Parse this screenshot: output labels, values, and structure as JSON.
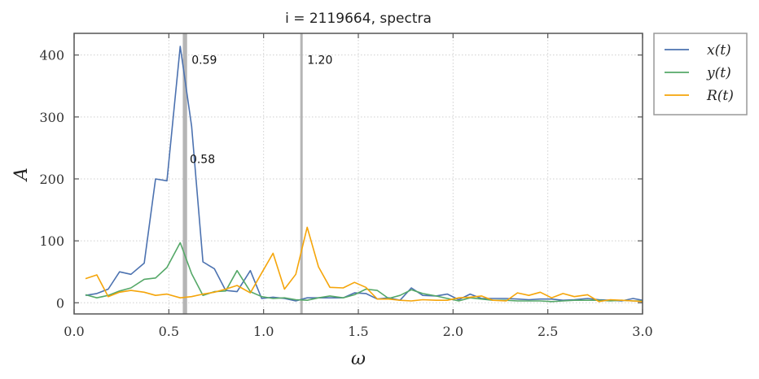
{
  "chart_data": {
    "type": "line",
    "title": "i = 2119664, spectra",
    "xlabel": "ω",
    "ylabel": "A",
    "xlim": [
      0.0,
      3.0
    ],
    "ylim": [
      -18,
      435
    ],
    "xticks": [
      "0.0",
      "0.5",
      "1.0",
      "1.5",
      "2.0",
      "2.5",
      "3.0"
    ],
    "yticks": [
      "0",
      "100",
      "200",
      "300",
      "400"
    ],
    "grid": true,
    "legend_position": "outside-top-right",
    "vlines": [
      {
        "x": 0.58,
        "label": "0.58",
        "label_y": 232
      },
      {
        "x": 0.59,
        "label": "0.59",
        "label_y": 392
      },
      {
        "x": 1.2,
        "label": "1.20",
        "label_y": 392
      }
    ],
    "x": [
      0.06,
      0.12,
      0.18,
      0.24,
      0.3,
      0.37,
      0.43,
      0.49,
      0.56,
      0.62,
      0.68,
      0.74,
      0.8,
      0.86,
      0.93,
      0.99,
      1.05,
      1.11,
      1.17,
      1.23,
      1.29,
      1.35,
      1.42,
      1.48,
      1.54,
      1.6,
      1.66,
      1.72,
      1.78,
      1.84,
      1.91,
      1.97,
      2.03,
      2.09,
      2.15,
      2.21,
      2.28,
      2.34,
      2.4,
      2.46,
      2.52,
      2.58,
      2.64,
      2.71,
      2.77,
      2.83,
      2.89,
      2.95,
      3.01
    ],
    "series": [
      {
        "name": "x(t)",
        "color": "#4c72b0",
        "values": [
          12,
          15,
          22,
          50,
          46,
          64,
          200,
          197,
          414,
          285,
          66,
          55,
          20,
          18,
          52,
          7,
          9,
          7,
          3,
          8,
          8,
          8,
          8,
          16,
          15,
          6,
          8,
          4,
          24,
          12,
          11,
          14,
          5,
          14,
          7,
          7,
          7,
          6,
          5,
          6,
          6,
          4,
          5,
          7,
          5,
          4,
          3,
          7,
          4
        ]
      },
      {
        "name": "y(t)",
        "color": "#55a868",
        "values": [
          13,
          8,
          12,
          19,
          24,
          38,
          40,
          57,
          97,
          47,
          12,
          18,
          19,
          52,
          18,
          10,
          7,
          8,
          5,
          4,
          8,
          11,
          8,
          13,
          22,
          20,
          7,
          12,
          21,
          15,
          11,
          7,
          3,
          8,
          6,
          4,
          4,
          3,
          3,
          3,
          2,
          3,
          4,
          4,
          4,
          3,
          4,
          3,
          3
        ]
      },
      {
        "name": "R(t)",
        "color": "#f5a50a",
        "values": [
          39,
          45,
          10,
          17,
          20,
          17,
          12,
          14,
          8,
          10,
          14,
          17,
          22,
          28,
          16,
          48,
          80,
          22,
          46,
          122,
          58,
          25,
          24,
          33,
          25,
          6,
          6,
          4,
          3,
          5,
          4,
          4,
          8,
          9,
          11,
          4,
          3,
          16,
          12,
          17,
          8,
          15,
          10,
          13,
          2,
          5,
          4,
          3,
          2
        ]
      }
    ]
  }
}
